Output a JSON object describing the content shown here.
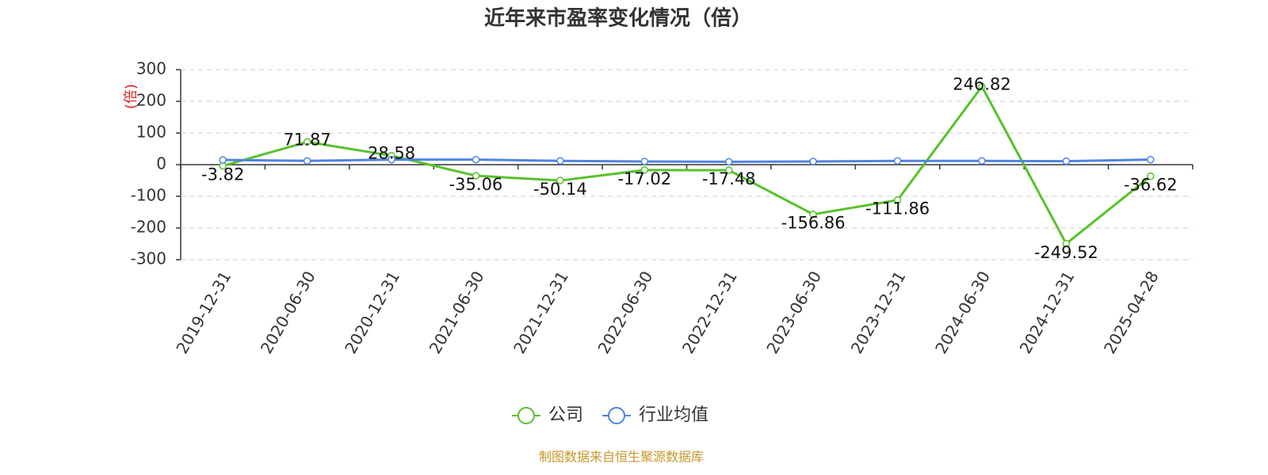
{
  "chart_data": {
    "type": "line",
    "title": "近年来市盈率变化情况（倍）",
    "y_label": "(倍)",
    "categories": [
      "2019-12-31",
      "2020-06-30",
      "2020-12-31",
      "2021-06-30",
      "2021-12-31",
      "2022-06-30",
      "2022-12-31",
      "2023-06-30",
      "2023-12-31",
      "2024-06-30",
      "2024-12-31",
      "2025-04-28"
    ],
    "series": [
      {
        "name": "公司",
        "color": "#57c22b",
        "values": [
          -3.82,
          71.87,
          28.58,
          -35.06,
          -50.14,
          -17.02,
          -17.48,
          -156.86,
          -111.86,
          246.82,
          -249.52,
          -36.62
        ]
      },
      {
        "name": "行业均值",
        "color": "#4f83e0",
        "values": [
          15,
          12,
          16,
          16,
          12,
          10,
          9,
          10,
          12,
          12,
          11,
          16
        ]
      }
    ],
    "ylim": [
      -300,
      300
    ],
    "yticks": [
      -300,
      -200,
      -100,
      0,
      100,
      200,
      300
    ],
    "grid": true,
    "source": "制图数据来自恒生聚源数据库"
  }
}
